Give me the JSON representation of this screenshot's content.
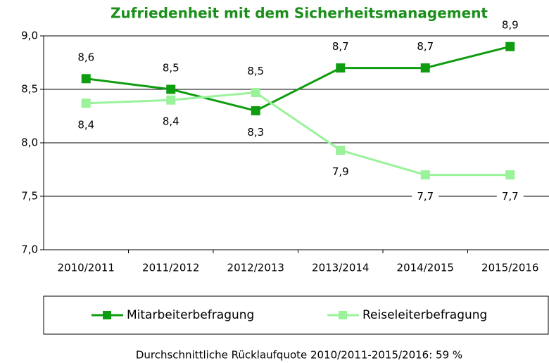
{
  "chart_data": {
    "type": "line",
    "title": "Zufriedenheit mit dem Sicherheitsmanagement",
    "categories": [
      "2010/2011",
      "2011/2012",
      "2012/2013",
      "2013/2014",
      "2014/2015",
      "2015/2016"
    ],
    "series": [
      {
        "name": "Mitarbeiterbefragung",
        "color": "#109c10",
        "values": [
          8.6,
          8.5,
          8.3,
          8.7,
          8.7,
          8.9
        ],
        "value_labels": [
          "8,6",
          "8,5",
          "8,3",
          "8,7",
          "8,7",
          "8,9"
        ]
      },
      {
        "name": "Reiseleiterbefragung",
        "color": "#9af29a",
        "values": [
          8.37,
          8.4,
          8.47,
          7.93,
          7.7,
          7.7
        ],
        "value_labels": [
          "8,4",
          "8,4",
          "8,5",
          "7,9",
          "7,7",
          "7,7"
        ]
      }
    ],
    "ylim": [
      7.0,
      9.0
    ],
    "yticks": [
      {
        "value": 7.0,
        "label": "7,0"
      },
      {
        "value": 7.5,
        "label": "7,5"
      },
      {
        "value": 8.0,
        "label": "8,0"
      },
      {
        "value": 8.5,
        "label": "8,5"
      },
      {
        "value": 9.0,
        "label": "9,0"
      }
    ],
    "grid": true,
    "legend": "bottom",
    "note": "Durchschnittliche Rücklaufquote 2010/2011-2015/2016: 59 %"
  }
}
